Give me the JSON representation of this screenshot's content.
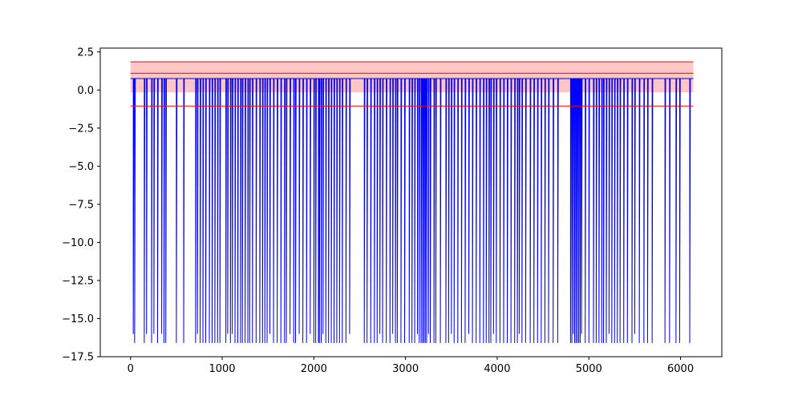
{
  "chart_data": {
    "type": "line",
    "title": "",
    "xlabel": "",
    "ylabel": "",
    "xlim": [
      -330,
      6450
    ],
    "ylim": [
      -17.5,
      2.75
    ],
    "xticks": [
      0,
      1000,
      2000,
      3000,
      4000,
      5000,
      6000
    ],
    "xtick_labels": [
      "0",
      "1000",
      "2000",
      "3000",
      "4000",
      "5000",
      "6000"
    ],
    "yticks": [
      2.5,
      0.0,
      -2.5,
      -5.0,
      -7.5,
      -10.0,
      -12.5,
      -15.0,
      -17.5
    ],
    "ytick_labels": [
      "2.5",
      "0.0",
      "−2.5",
      "−5.0",
      "−7.5",
      "−10.0",
      "−12.5",
      "−15.0",
      "−17.5"
    ],
    "grid": false,
    "colors": {
      "series": "#0000ff",
      "reference": "#ff0000",
      "band": "#ffb3b3"
    },
    "series": [
      {
        "baseline": 0.75,
        "x_range": [
          0,
          6140
        ],
        "dips": [
          [
            30,
            -16.0
          ],
          [
            45,
            -16.6
          ],
          [
            150,
            -16.6
          ],
          [
            175,
            -16.0
          ],
          [
            230,
            -16.6
          ],
          [
            255,
            -16.0
          ],
          [
            295,
            -16.6
          ],
          [
            340,
            -16.0
          ],
          [
            365,
            -16.6
          ],
          [
            385,
            -16.6
          ],
          [
            500,
            -16.6
          ],
          [
            580,
            -16.6
          ],
          [
            710,
            -16.6
          ],
          [
            730,
            -16.0
          ],
          [
            760,
            -16.6
          ],
          [
            790,
            -16.6
          ],
          [
            820,
            -16.6
          ],
          [
            860,
            -16.6
          ],
          [
            890,
            -16.6
          ],
          [
            920,
            -16.6
          ],
          [
            950,
            -16.6
          ],
          [
            975,
            -16.6
          ],
          [
            1040,
            -16.6
          ],
          [
            1060,
            -16.0
          ],
          [
            1090,
            -16.6
          ],
          [
            1110,
            -16.0
          ],
          [
            1140,
            -16.6
          ],
          [
            1170,
            -16.6
          ],
          [
            1200,
            -16.6
          ],
          [
            1220,
            -16.6
          ],
          [
            1250,
            -16.6
          ],
          [
            1280,
            -16.6
          ],
          [
            1300,
            -16.6
          ],
          [
            1330,
            -16.6
          ],
          [
            1370,
            -16.6
          ],
          [
            1410,
            -16.6
          ],
          [
            1440,
            -16.6
          ],
          [
            1465,
            -16.6
          ],
          [
            1490,
            -16.6
          ],
          [
            1520,
            -16.0
          ],
          [
            1560,
            -16.6
          ],
          [
            1600,
            -16.6
          ],
          [
            1640,
            -16.6
          ],
          [
            1680,
            -16.6
          ],
          [
            1700,
            -16.6
          ],
          [
            1740,
            -16.0
          ],
          [
            1780,
            -16.6
          ],
          [
            1800,
            -16.6
          ],
          [
            1840,
            -16.0
          ],
          [
            1880,
            -16.6
          ],
          [
            1920,
            -16.6
          ],
          [
            1960,
            -16.0
          ],
          [
            2000,
            -16.6
          ],
          [
            2020,
            -16.6
          ],
          [
            2050,
            -16.6
          ],
          [
            2060,
            -16.6
          ],
          [
            2080,
            -16.6
          ],
          [
            2100,
            -16.0
          ],
          [
            2130,
            -16.6
          ],
          [
            2160,
            -16.6
          ],
          [
            2190,
            -16.6
          ],
          [
            2220,
            -16.6
          ],
          [
            2250,
            -16.6
          ],
          [
            2280,
            -16.6
          ],
          [
            2310,
            -16.6
          ],
          [
            2350,
            -16.6
          ],
          [
            2390,
            -16.0
          ],
          [
            2550,
            -16.6
          ],
          [
            2580,
            -16.6
          ],
          [
            2620,
            -16.6
          ],
          [
            2660,
            -16.6
          ],
          [
            2690,
            -16.6
          ],
          [
            2720,
            -16.0
          ],
          [
            2750,
            -16.6
          ],
          [
            2790,
            -16.6
          ],
          [
            2830,
            -16.6
          ],
          [
            2860,
            -16.0
          ],
          [
            2890,
            -16.6
          ],
          [
            2910,
            -16.6
          ],
          [
            2950,
            -16.6
          ],
          [
            2990,
            -16.6
          ],
          [
            3040,
            -16.6
          ],
          [
            3070,
            -16.6
          ],
          [
            3100,
            -16.6
          ],
          [
            3130,
            -16.0
          ],
          [
            3150,
            -16.6
          ],
          [
            3170,
            -16.6
          ],
          [
            3185,
            -16.6
          ],
          [
            3200,
            -16.6
          ],
          [
            3215,
            -16.6
          ],
          [
            3230,
            -16.6
          ],
          [
            3250,
            -16.0
          ],
          [
            3270,
            -16.6
          ],
          [
            3310,
            -16.6
          ],
          [
            3330,
            -16.6
          ],
          [
            3380,
            -16.6
          ],
          [
            3440,
            -16.6
          ],
          [
            3470,
            -16.6
          ],
          [
            3500,
            -16.0
          ],
          [
            3530,
            -16.6
          ],
          [
            3570,
            -16.6
          ],
          [
            3610,
            -16.6
          ],
          [
            3650,
            -16.6
          ],
          [
            3690,
            -16.0
          ],
          [
            3730,
            -16.6
          ],
          [
            3770,
            -16.6
          ],
          [
            3810,
            -16.6
          ],
          [
            3850,
            -16.6
          ],
          [
            3880,
            -16.6
          ],
          [
            3910,
            -16.6
          ],
          [
            3930,
            -16.6
          ],
          [
            3960,
            -16.0
          ],
          [
            3990,
            -16.6
          ],
          [
            4030,
            -16.6
          ],
          [
            4070,
            -16.6
          ],
          [
            4110,
            -16.6
          ],
          [
            4150,
            -16.6
          ],
          [
            4190,
            -16.6
          ],
          [
            4220,
            -16.6
          ],
          [
            4240,
            -16.0
          ],
          [
            4270,
            -16.6
          ],
          [
            4310,
            -16.6
          ],
          [
            4360,
            -16.6
          ],
          [
            4400,
            -16.6
          ],
          [
            4440,
            -16.6
          ],
          [
            4480,
            -16.6
          ],
          [
            4520,
            -16.6
          ],
          [
            4560,
            -16.6
          ],
          [
            4610,
            -16.6
          ],
          [
            4660,
            -16.6
          ],
          [
            4800,
            -16.6
          ],
          [
            4815,
            -16.6
          ],
          [
            4830,
            -16.0
          ],
          [
            4845,
            -16.6
          ],
          [
            4860,
            -16.6
          ],
          [
            4875,
            -16.6
          ],
          [
            4890,
            -16.6
          ],
          [
            4905,
            -16.6
          ],
          [
            4920,
            -16.0
          ],
          [
            4960,
            -16.6
          ],
          [
            5000,
            -16.6
          ],
          [
            5050,
            -16.6
          ],
          [
            5080,
            -16.6
          ],
          [
            5110,
            -16.6
          ],
          [
            5140,
            -16.6
          ],
          [
            5160,
            -16.6
          ],
          [
            5190,
            -16.6
          ],
          [
            5220,
            -16.0
          ],
          [
            5250,
            -16.6
          ],
          [
            5280,
            -16.6
          ],
          [
            5310,
            -16.6
          ],
          [
            5340,
            -16.6
          ],
          [
            5380,
            -16.6
          ],
          [
            5420,
            -16.6
          ],
          [
            5470,
            -16.6
          ],
          [
            5500,
            -16.0
          ],
          [
            5550,
            -16.6
          ],
          [
            5600,
            -16.6
          ],
          [
            5640,
            -16.6
          ],
          [
            5690,
            -16.6
          ],
          [
            5830,
            -16.6
          ],
          [
            5880,
            -16.6
          ],
          [
            5950,
            -16.6
          ],
          [
            5990,
            -16.6
          ],
          [
            6100,
            -16.6
          ]
        ]
      }
    ],
    "reference_lines": [
      {
        "y": 1.85,
        "x_range": [
          0,
          6140
        ]
      },
      {
        "y": 1.1,
        "x_range": [
          0,
          6140
        ]
      },
      {
        "y": -1.05,
        "x_range": [
          0,
          6140
        ]
      }
    ],
    "bands": [
      {
        "y_range": [
          -0.15,
          1.85
        ],
        "x_range": [
          0,
          6140
        ]
      }
    ]
  }
}
